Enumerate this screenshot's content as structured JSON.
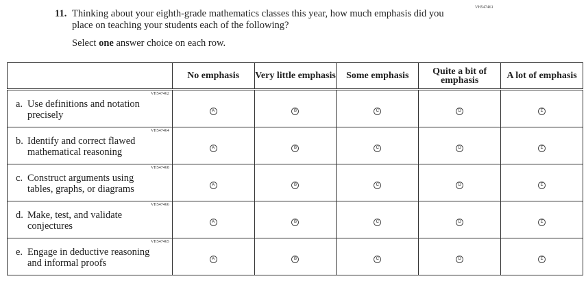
{
  "question": {
    "id": "VH547461",
    "number": "11.",
    "text": "Thinking about your eighth-grade mathematics classes this year, how much emphasis did you place on teaching your students each of the following?",
    "instruction_pre": "Select ",
    "instruction_bold": "one",
    "instruction_post": " answer choice on each row."
  },
  "columns": [
    "No emphasis",
    "Very little emphasis",
    "Some emphasis",
    "Quite a bit of emphasis",
    "A lot of emphasis"
  ],
  "bubbles": [
    "A",
    "B",
    "C",
    "D",
    "E"
  ],
  "rows": [
    {
      "id": "VH547462",
      "letter": "a.",
      "line1": "Use definitions and notation",
      "line2": "precisely"
    },
    {
      "id": "VH547464",
      "letter": "b.",
      "line1": "Identify and correct flawed",
      "line2": "mathematical reasoning"
    },
    {
      "id": "VH547468",
      "letter": "c.",
      "line1": "Construct arguments using",
      "line2": "tables, graphs, or diagrams"
    },
    {
      "id": "VH547466",
      "letter": "d.",
      "line1": "Make, test, and validate",
      "line2": "conjectures"
    },
    {
      "id": "VH547465",
      "letter": "e.",
      "line1": "Engage in deductive reasoning",
      "line2": "and informal proofs"
    }
  ]
}
